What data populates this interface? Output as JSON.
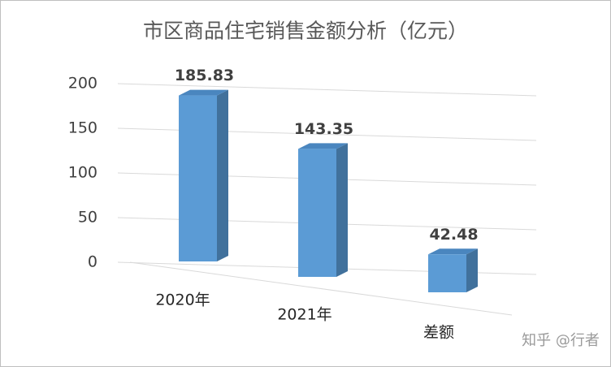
{
  "chart_data": {
    "type": "bar3d",
    "title": "市区商品住宅销售金额分析（亿元）",
    "categories": [
      "2020年",
      "2021年",
      "差额"
    ],
    "values": [
      185.83,
      143.35,
      42.48
    ],
    "color": "#5b9bd5",
    "ylim": [
      0,
      200
    ],
    "yticks": [
      0,
      50,
      100,
      150,
      200
    ],
    "grid": true
  },
  "watermark": "知乎 @行者"
}
